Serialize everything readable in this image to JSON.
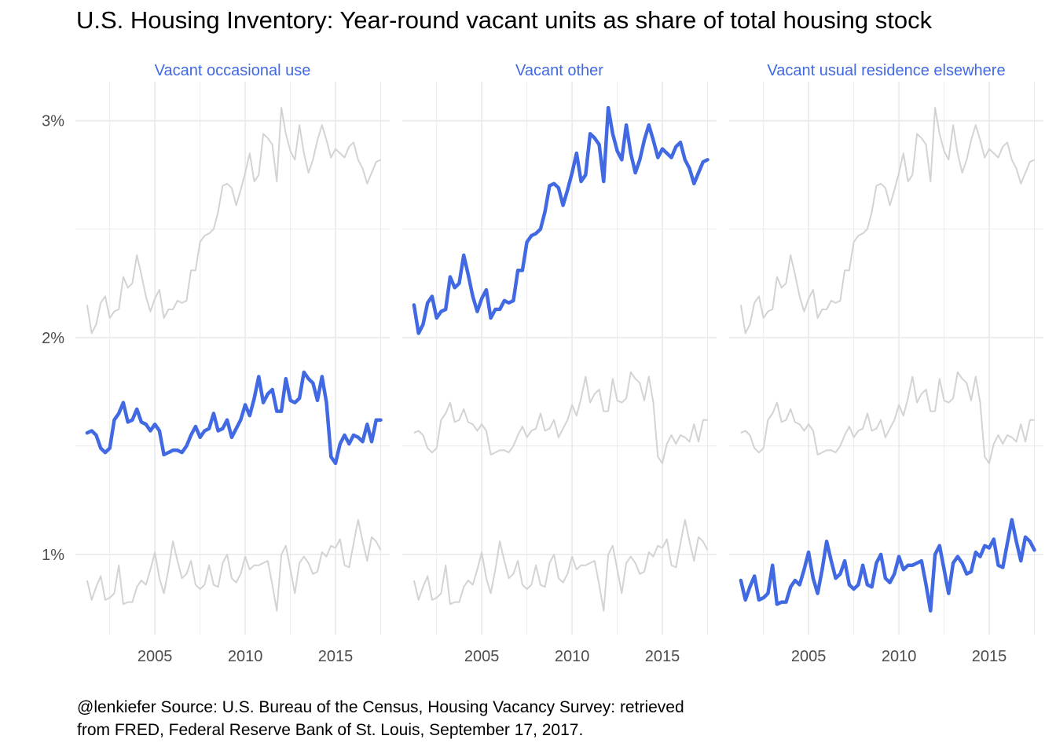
{
  "title": "U.S. Housing Inventory: Year-round vacant units as share of total housing stock",
  "caption": {
    "line1": "@lenkiefer Source: U.S. Bureau of the Census, Housing Vacancy Survey: retrieved",
    "line2": "from FRED, Federal Reserve Bank of St. Louis, September 17, 2017."
  },
  "colors": {
    "highlight": "#4169E1",
    "background_series": "#d3d3d3",
    "grid": "#ebebeb",
    "text": "#4d4d4d"
  },
  "chart_data": {
    "type": "line",
    "facet_by": "series",
    "panels": [
      "Vacant occasional use",
      "Vacant other",
      "Vacant usual residence elsewhere"
    ],
    "x_ticks": [
      2005,
      2010,
      2015
    ],
    "y_ticks": [
      1,
      2,
      3
    ],
    "y_tick_labels": [
      "1%",
      "2%",
      "3%"
    ],
    "xlim": [
      2000.6,
      2018.0
    ],
    "ylim": [
      0.63,
      3.18
    ],
    "grid": true,
    "x": [
      2001.25,
      2001.5,
      2001.75,
      2002.0,
      2002.25,
      2002.5,
      2002.75,
      2003.0,
      2003.25,
      2003.5,
      2003.75,
      2004.0,
      2004.25,
      2004.5,
      2004.75,
      2005.0,
      2005.25,
      2005.5,
      2005.75,
      2006.0,
      2006.25,
      2006.5,
      2006.75,
      2007.0,
      2007.25,
      2007.5,
      2007.75,
      2008.0,
      2008.25,
      2008.5,
      2008.75,
      2009.0,
      2009.25,
      2009.5,
      2009.75,
      2010.0,
      2010.25,
      2010.5,
      2010.75,
      2011.0,
      2011.25,
      2011.5,
      2011.75,
      2012.0,
      2012.25,
      2012.5,
      2012.75,
      2013.0,
      2013.25,
      2013.5,
      2013.75,
      2014.0,
      2014.25,
      2014.5,
      2014.75,
      2015.0,
      2015.25,
      2015.5,
      2015.75,
      2016.0,
      2016.25,
      2016.5,
      2016.75,
      2017.0,
      2017.25,
      2017.5
    ],
    "series": [
      {
        "name": "Vacant occasional use",
        "values": [
          1.56,
          1.57,
          1.55,
          1.49,
          1.47,
          1.49,
          1.62,
          1.65,
          1.7,
          1.61,
          1.62,
          1.67,
          1.61,
          1.6,
          1.57,
          1.6,
          1.57,
          1.46,
          1.47,
          1.48,
          1.48,
          1.47,
          1.5,
          1.55,
          1.59,
          1.54,
          1.57,
          1.58,
          1.65,
          1.57,
          1.58,
          1.62,
          1.54,
          1.58,
          1.62,
          1.69,
          1.64,
          1.72,
          1.82,
          1.7,
          1.74,
          1.76,
          1.66,
          1.66,
          1.81,
          1.71,
          1.7,
          1.72,
          1.84,
          1.81,
          1.79,
          1.71,
          1.82,
          1.7,
          1.45,
          1.42,
          1.51,
          1.55,
          1.51,
          1.55,
          1.54,
          1.52,
          1.6,
          1.52,
          1.62,
          1.62
        ]
      },
      {
        "name": "Vacant other",
        "values": [
          2.15,
          2.02,
          2.06,
          2.16,
          2.19,
          2.09,
          2.12,
          2.13,
          2.28,
          2.23,
          2.25,
          2.38,
          2.29,
          2.19,
          2.12,
          2.18,
          2.22,
          2.09,
          2.13,
          2.13,
          2.17,
          2.16,
          2.17,
          2.31,
          2.31,
          2.44,
          2.47,
          2.48,
          2.5,
          2.58,
          2.7,
          2.71,
          2.69,
          2.61,
          2.68,
          2.76,
          2.85,
          2.72,
          2.75,
          2.94,
          2.92,
          2.89,
          2.72,
          3.06,
          2.94,
          2.86,
          2.82,
          2.98,
          2.85,
          2.76,
          2.82,
          2.91,
          2.98,
          2.91,
          2.83,
          2.87,
          2.85,
          2.83,
          2.88,
          2.9,
          2.82,
          2.78,
          2.71,
          2.76,
          2.81,
          2.82
        ]
      },
      {
        "name": "Vacant usual residence elsewhere",
        "values": [
          0.88,
          0.79,
          0.85,
          0.9,
          0.79,
          0.8,
          0.82,
          0.95,
          0.77,
          0.78,
          0.78,
          0.85,
          0.88,
          0.86,
          0.93,
          1.01,
          0.89,
          0.82,
          0.93,
          1.06,
          0.97,
          0.89,
          0.91,
          0.97,
          0.86,
          0.84,
          0.86,
          0.95,
          0.86,
          0.85,
          0.96,
          1.0,
          0.89,
          0.87,
          0.91,
          0.99,
          0.93,
          0.95,
          0.95,
          0.96,
          0.97,
          0.86,
          0.74,
          1.0,
          1.04,
          0.93,
          0.82,
          0.96,
          0.99,
          0.96,
          0.91,
          0.92,
          1.01,
          0.99,
          1.04,
          1.03,
          1.07,
          0.95,
          0.94,
          1.05,
          1.16,
          1.06,
          0.97,
          1.08,
          1.06,
          1.02
        ]
      }
    ]
  }
}
